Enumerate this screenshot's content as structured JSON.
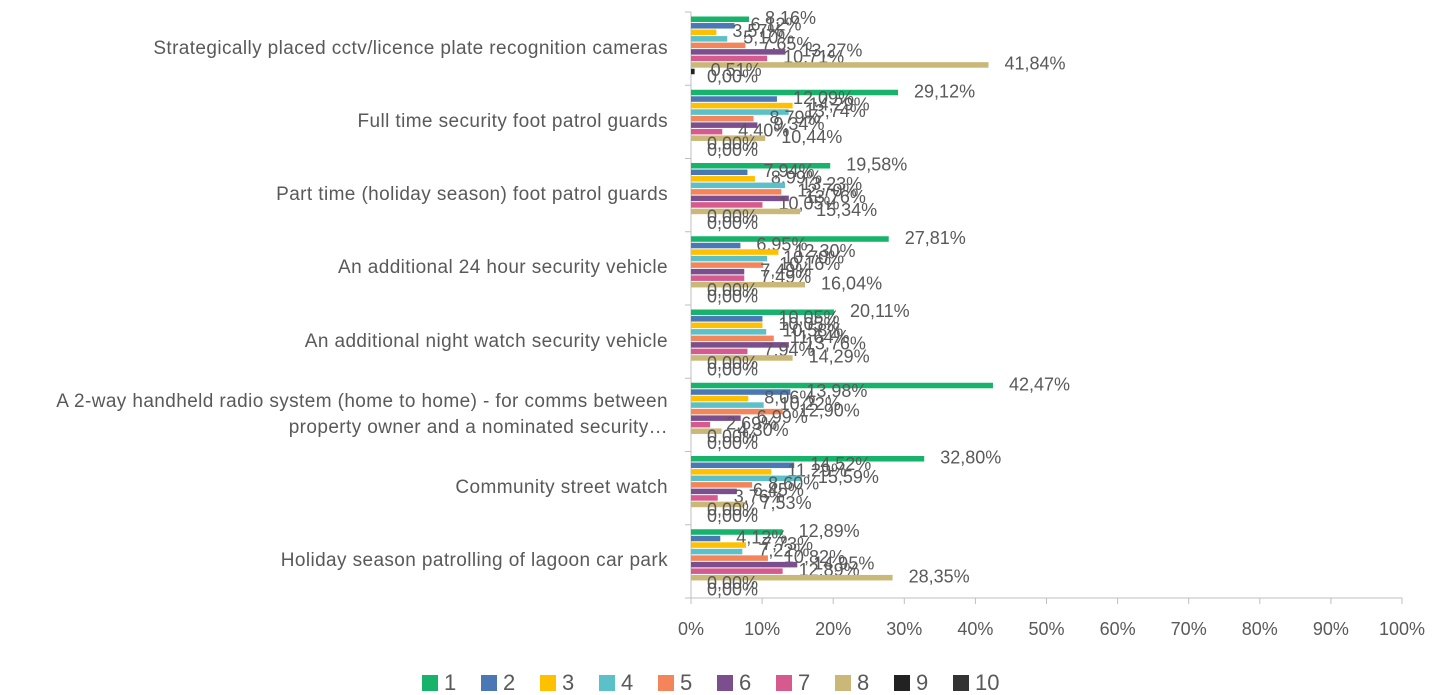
{
  "chart_data": {
    "type": "bar",
    "orientation": "horizontal",
    "categories": [
      "Strategically placed cctv/licence plate recognition cameras",
      "Full time security foot patrol guards",
      "Part time (holiday season) foot patrol guards",
      "An additional 24 hour security vehicle",
      "An additional night watch security vehicle",
      "A 2-way handheld radio system (home to home) - for comms between property owner and a nominated security…",
      "Community street watch",
      "Holiday season patrolling of lagoon car park"
    ],
    "series": [
      {
        "name": "1",
        "color": "#17b36b",
        "values": [
          8.16,
          29.12,
          19.58,
          27.81,
          20.11,
          42.47,
          32.8,
          12.89
        ],
        "value_labels": [
          "8,16%",
          "29,12%",
          "19,58%",
          "27,81%",
          "20,11%",
          "42,47%",
          "32,80%",
          "12,89%"
        ]
      },
      {
        "name": "2",
        "color": "#4a78b5",
        "values": [
          6.12,
          12.09,
          7.94,
          6.95,
          10.05,
          13.98,
          14.52,
          4.12
        ],
        "value_labels": [
          "6,12%",
          "12,09%",
          "7,94%",
          "6,95%",
          "10,05%",
          "13,98%",
          "14,52%",
          "4,12%"
        ]
      },
      {
        "name": "3",
        "color": "#ffc000",
        "values": [
          3.57,
          14.29,
          8.99,
          12.3,
          10.05,
          8.06,
          11.29,
          7.73
        ],
        "value_labels": [
          "3,57%",
          "14,29%",
          "8,99%",
          "12,30%",
          "10,05%",
          "8,06%",
          "11,29%",
          "7,73%"
        ]
      },
      {
        "name": "4",
        "color": "#5bc0c8",
        "values": [
          5.1,
          13.74,
          13.23,
          10.7,
          10.58,
          10.22,
          15.59,
          7.22
        ],
        "value_labels": [
          "5,10%",
          "13,74%",
          "13,23%",
          "10,70%",
          "10,58%",
          "10,22%",
          "15,59%",
          "7,22%"
        ]
      },
      {
        "name": "5",
        "color": "#f4855a",
        "values": [
          7.65,
          8.79,
          12.7,
          10.16,
          11.64,
          12.9,
          8.6,
          10.82
        ],
        "value_labels": [
          "7,65%",
          "8,79%",
          "12,70%",
          "10,16%",
          "11,64%",
          "12,90%",
          "8,60%",
          "10,82%"
        ]
      },
      {
        "name": "6",
        "color": "#7b4f8e",
        "values": [
          13.27,
          9.34,
          13.76,
          7.49,
          13.76,
          6.99,
          6.45,
          14.95
        ],
        "value_labels": [
          "13,27%",
          "9,34%",
          "13,76%",
          "7,49%",
          "13,76%",
          "6,99%",
          "6,45%",
          "14,95%"
        ]
      },
      {
        "name": "7",
        "color": "#d65a8e",
        "values": [
          10.71,
          4.4,
          10.05,
          7.49,
          7.94,
          2.69,
          3.76,
          12.89
        ],
        "value_labels": [
          "10,71%",
          "4,40%",
          "10,05%",
          "7,49%",
          "7,94%",
          "2,69%",
          "3,76%",
          "12,89%"
        ]
      },
      {
        "name": "8",
        "color": "#c9b878",
        "values": [
          41.84,
          10.44,
          15.34,
          16.04,
          14.29,
          4.3,
          7.53,
          28.35
        ],
        "value_labels": [
          "41,84%",
          "10,44%",
          "15,34%",
          "16,04%",
          "14,29%",
          "4,30%",
          "7,53%",
          "28,35%"
        ]
      },
      {
        "name": "9",
        "color": "#222222",
        "values": [
          0.51,
          0,
          0,
          0,
          0,
          0,
          0,
          0
        ],
        "value_labels": [
          "0,51%",
          "0,00%",
          "0,00%",
          "0,00%",
          "0,00%",
          "0,00%",
          "0,00%",
          "0,00%"
        ]
      },
      {
        "name": "10",
        "color": "#333333",
        "values": [
          0,
          0,
          0,
          0,
          0,
          0,
          0,
          0
        ],
        "value_labels": [
          "0,00%",
          "0,00%",
          "0,00%",
          "0,00%",
          "0,00%",
          "0,00%",
          "0,00%",
          "0,00%"
        ]
      }
    ],
    "xlim": [
      0,
      100
    ],
    "xticks": [
      {
        "value": 0,
        "label": "0%"
      },
      {
        "value": 10,
        "label": "10%"
      },
      {
        "value": 20,
        "label": "20%"
      },
      {
        "value": 30,
        "label": "30%"
      },
      {
        "value": 40,
        "label": "40%"
      },
      {
        "value": 50,
        "label": "50%"
      },
      {
        "value": 60,
        "label": "60%"
      },
      {
        "value": 70,
        "label": "70%"
      },
      {
        "value": 80,
        "label": "80%"
      },
      {
        "value": 90,
        "label": "90%"
      },
      {
        "value": 100,
        "label": "100%"
      }
    ],
    "grid": false,
    "legend": "bottom"
  }
}
